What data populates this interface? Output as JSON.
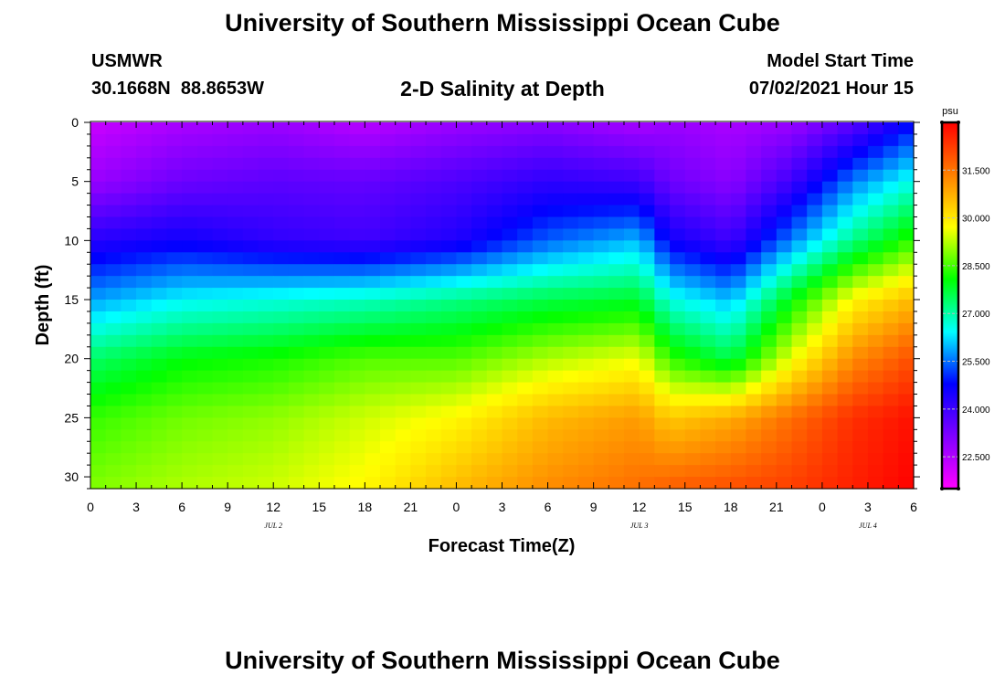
{
  "header": {
    "title": "University of Southern Mississippi Ocean Cube",
    "station": "USMWR",
    "coords": "30.1668N  88.8653W",
    "subtitle": "2-D Salinity at Depth",
    "model_label": "Model Start Time",
    "model_time": "07/02/2021 Hour 15"
  },
  "footer": {
    "title": "University of Southern Mississippi Ocean Cube"
  },
  "chart_data": {
    "type": "heatmap",
    "title": "2-D Salinity at Depth",
    "xlabel": "Forecast Time(Z)",
    "ylabel": "Depth (ft)",
    "x_range": [
      0,
      54
    ],
    "y_range": [
      0,
      31
    ],
    "x_ticks": [
      {
        "t": 0,
        "label": "0"
      },
      {
        "t": 3,
        "label": "3"
      },
      {
        "t": 6,
        "label": "6"
      },
      {
        "t": 9,
        "label": "9"
      },
      {
        "t": 12,
        "label": "12"
      },
      {
        "t": 15,
        "label": "15"
      },
      {
        "t": 18,
        "label": "18"
      },
      {
        "t": 21,
        "label": "21"
      },
      {
        "t": 24,
        "label": "0"
      },
      {
        "t": 27,
        "label": "3"
      },
      {
        "t": 30,
        "label": "6"
      },
      {
        "t": 33,
        "label": "9"
      },
      {
        "t": 36,
        "label": "12"
      },
      {
        "t": 39,
        "label": "15"
      },
      {
        "t": 42,
        "label": "18"
      },
      {
        "t": 45,
        "label": "21"
      },
      {
        "t": 48,
        "label": "0"
      },
      {
        "t": 51,
        "label": "3"
      },
      {
        "t": 54,
        "label": "6"
      }
    ],
    "day_labels": [
      {
        "t": 12,
        "label": "JUL 2"
      },
      {
        "t": 36,
        "label": "JUL 3"
      },
      {
        "t": 51,
        "label": "JUL 4"
      }
    ],
    "y_ticks": [
      {
        "v": 0,
        "label": "0"
      },
      {
        "v": 5,
        "label": "5"
      },
      {
        "v": 10,
        "label": "10"
      },
      {
        "v": 15,
        "label": "15"
      },
      {
        "v": 20,
        "label": "20"
      },
      {
        "v": 25,
        "label": "25"
      },
      {
        "v": 30,
        "label": "30"
      }
    ],
    "colorbar": {
      "unit": "psu",
      "min": 21.5,
      "max": 33.0,
      "ticks": [
        {
          "v": 22.5,
          "label": "22.500"
        },
        {
          "v": 24.0,
          "label": "24.000"
        },
        {
          "v": 25.5,
          "label": "25.500"
        },
        {
          "v": 27.0,
          "label": "27.000"
        },
        {
          "v": 28.5,
          "label": "28.500"
        },
        {
          "v": 30.0,
          "label": "30.000"
        },
        {
          "v": 31.5,
          "label": "31.500"
        }
      ],
      "palette": [
        "#ff00ff",
        "#8000ff",
        "#0000ff",
        "#00ffff",
        "#00ff00",
        "#ffff00",
        "#ff8000",
        "#ff0000"
      ]
    },
    "depth_levels": [
      0,
      5,
      10,
      15,
      20,
      25,
      31
    ],
    "times": [
      0,
      6,
      12,
      18,
      24,
      30,
      36,
      38,
      42,
      46,
      50,
      54
    ],
    "salinity_psu": [
      [
        22.2,
        22.6,
        22.8,
        22.4,
        22.8,
        23.0,
        22.6,
        22.8,
        22.6,
        22.8,
        23.6,
        24.8
      ],
      [
        22.8,
        23.4,
        23.6,
        23.5,
        23.8,
        24.2,
        24.0,
        23.4,
        23.0,
        24.0,
        25.6,
        26.6
      ],
      [
        24.3,
        24.6,
        24.2,
        24.0,
        24.4,
        25.4,
        26.0,
        24.6,
        24.0,
        25.6,
        27.2,
        28.4
      ],
      [
        25.8,
        26.4,
        26.6,
        26.8,
        27.2,
        27.6,
        27.8,
        26.6,
        26.0,
        28.0,
        29.8,
        30.6
      ],
      [
        27.4,
        28.0,
        28.2,
        28.6,
        28.6,
        29.2,
        29.6,
        28.4,
        27.6,
        29.6,
        31.2,
        32.0
      ],
      [
        28.4,
        28.8,
        29.0,
        29.4,
        29.8,
        30.6,
        31.0,
        30.4,
        30.8,
        31.6,
        32.4,
        32.8
      ],
      [
        28.9,
        29.2,
        29.4,
        29.8,
        30.6,
        31.2,
        31.6,
        31.8,
        32.0,
        32.2,
        32.6,
        33.0
      ]
    ]
  }
}
